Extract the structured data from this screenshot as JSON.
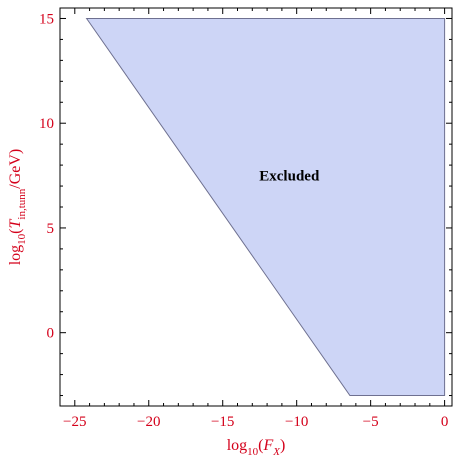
{
  "chart_data": {
    "type": "area",
    "title": "",
    "xlabel": {
      "base": "log",
      "sub": "10",
      "open": "(",
      "var": "F",
      "var_sub": "X",
      "close": ")"
    },
    "ylabel": {
      "base": "log",
      "sub": "10",
      "open": "(",
      "var": "T",
      "var_sub": "in,tunn",
      "tail": "/GeV)"
    },
    "xlim": [
      -26,
      0.5
    ],
    "ylim": [
      -3.5,
      15.5
    ],
    "x_ticks": [
      -25,
      -20,
      -15,
      -10,
      -5,
      0
    ],
    "x_tick_labels": [
      "−25",
      "−20",
      "−15",
      "−10",
      "−5",
      "0"
    ],
    "y_ticks": [
      0,
      5,
      10,
      15
    ],
    "y_tick_labels": [
      "0",
      "5",
      "10",
      "15"
    ],
    "x_minor_step": 1,
    "y_minor_step": 1,
    "grid": false,
    "region": {
      "name": "Excluded",
      "label": "Excluded",
      "label_position": [
        -10.5,
        7.5
      ],
      "boundary": [
        [
          -24.2,
          15
        ],
        [
          -6.4,
          -3
        ],
        [
          0,
          -3
        ],
        [
          0,
          15
        ]
      ]
    },
    "colors": {
      "fill": "#cdd5f6",
      "edge": "#6e7090",
      "label_red": "#d4001a",
      "frame": "#000000"
    }
  }
}
